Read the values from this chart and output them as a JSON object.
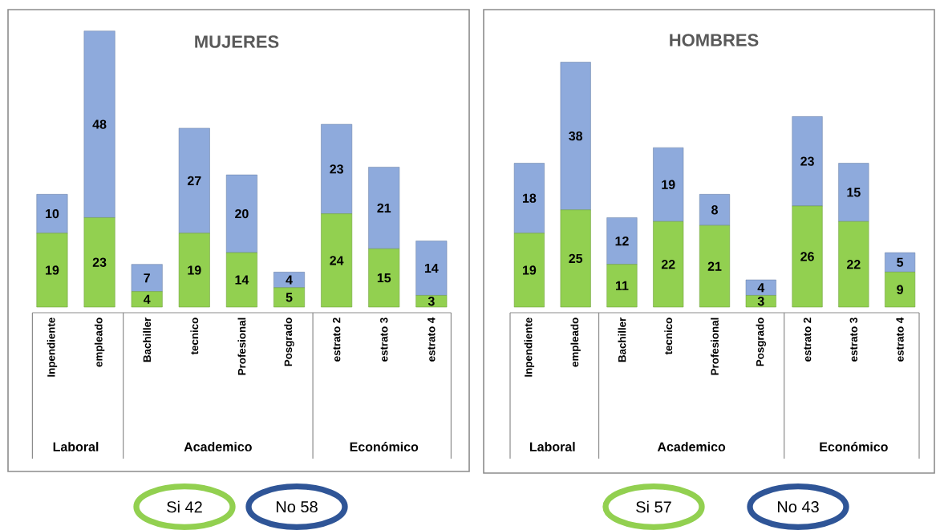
{
  "chart_data": [
    {
      "type": "bar",
      "title": "MUJERES",
      "stacked": true,
      "data_labels": true,
      "categories": [
        "Inpendiente",
        "empleado",
        "Bachiller",
        "tecnico",
        "Profesional",
        "Posgrado",
        "estrato 2",
        "estrato 3",
        "estrato 4"
      ],
      "series": [
        {
          "color": "#92d050",
          "values": [
            19,
            23,
            4,
            19,
            14,
            5,
            24,
            15,
            3
          ]
        },
        {
          "color": "#8eaadc",
          "values": [
            10,
            48,
            7,
            27,
            20,
            4,
            23,
            21,
            14
          ]
        }
      ],
      "annotations": [
        "Laboral",
        "Academico",
        "Económico",
        "Si 42",
        "No 58"
      ]
    },
    {
      "type": "bar",
      "title": "HOMBRES",
      "stacked": true,
      "data_labels": true,
      "categories": [
        "Inpendiente",
        "empleado",
        "Bachiller",
        "tecnico",
        "Profesional",
        "Posgrado",
        "estrato 2",
        "estrato 3",
        "estrato 4"
      ],
      "series": [
        {
          "color": "#92d050",
          "values": [
            19,
            25,
            11,
            22,
            21,
            3,
            26,
            22,
            9
          ]
        },
        {
          "color": "#8eaadc",
          "values": [
            18,
            38,
            12,
            19,
            8,
            4,
            23,
            15,
            5
          ]
        }
      ],
      "annotations": [
        "Laboral",
        "Academico",
        "Económico",
        "Si 57",
        "No 43"
      ]
    }
  ]
}
